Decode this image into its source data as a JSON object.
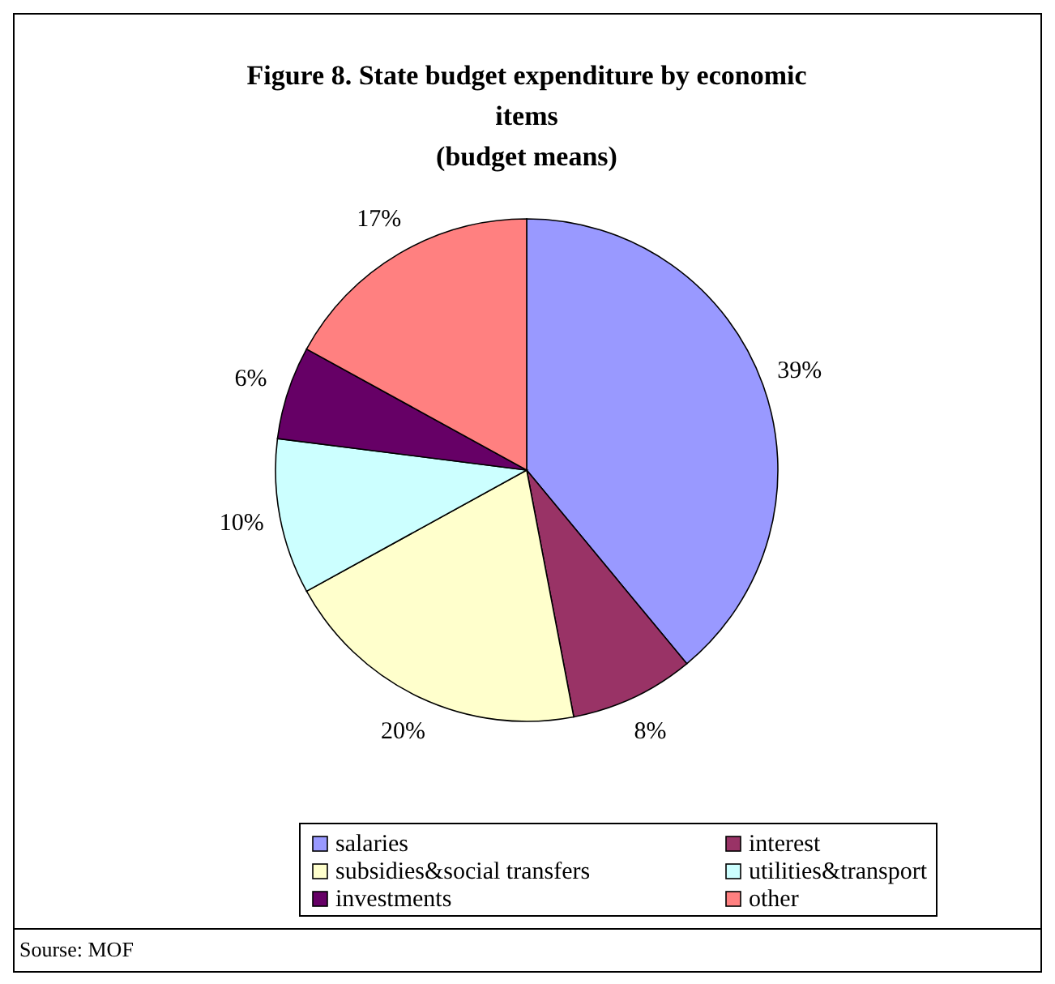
{
  "chart_data": {
    "type": "pie",
    "title": "Figure 8. State budget expenditure by economic items",
    "subtitle": "(budget means)",
    "categories": [
      "salaries",
      "interest",
      "subsidies&social transfers",
      "utilities&transport",
      "investments",
      "other"
    ],
    "values": [
      39,
      8,
      20,
      10,
      6,
      17
    ],
    "colors": [
      "#9999ff",
      "#993366",
      "#ffffcc",
      "#ccffff",
      "#660066",
      "#ff8080"
    ],
    "legend": "bottom",
    "value_labels": [
      "39%",
      "8%",
      "20%",
      "10%",
      "6%",
      "17%"
    ],
    "annotations": [
      "Sourse: MOF"
    ]
  }
}
